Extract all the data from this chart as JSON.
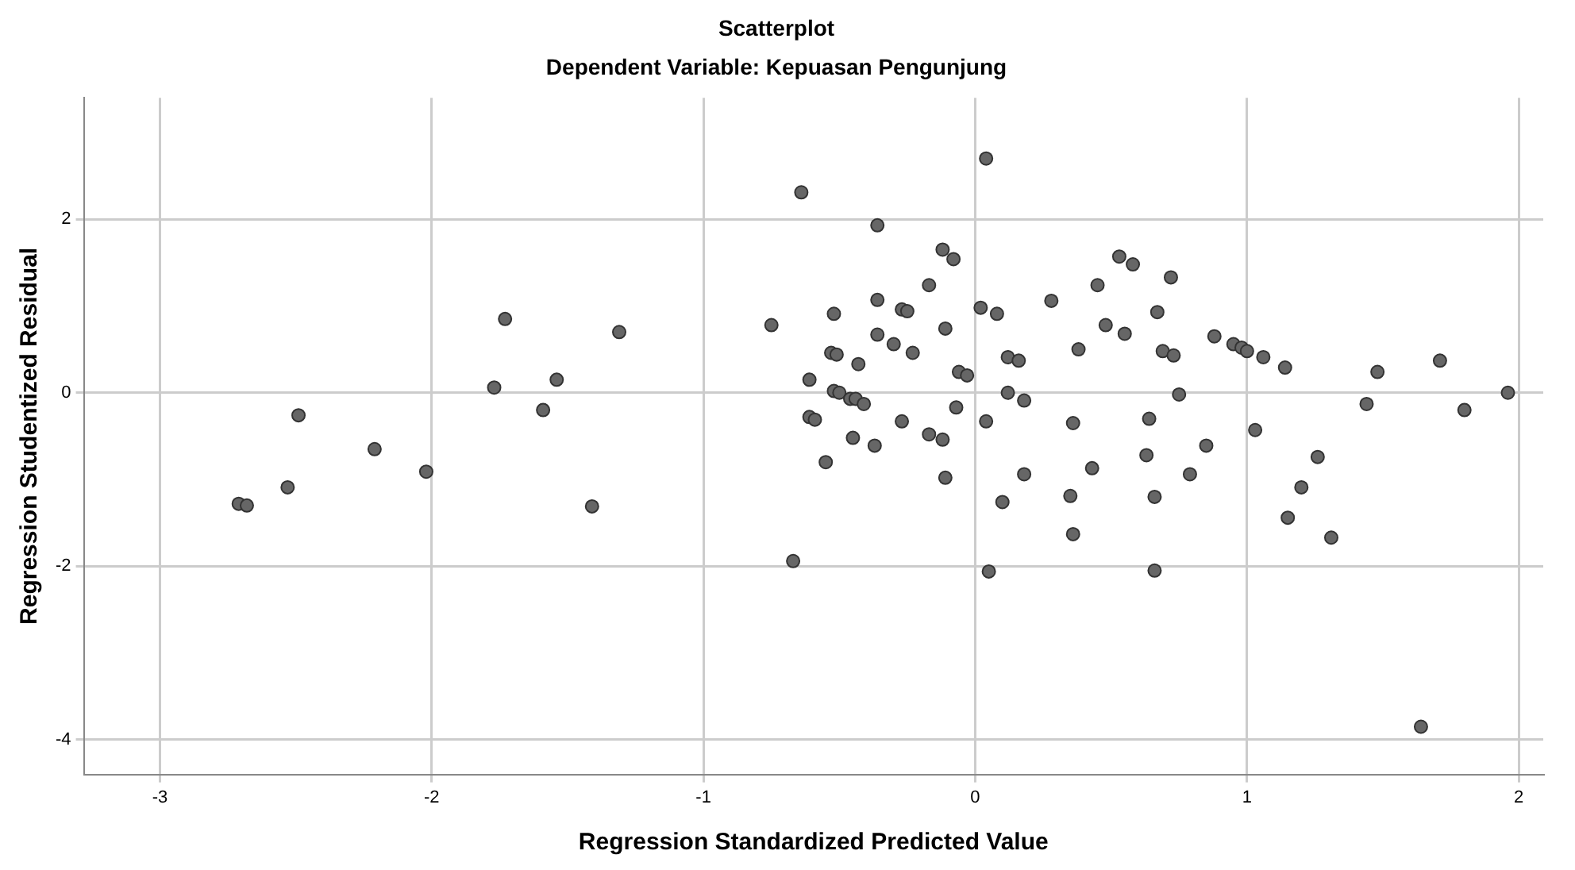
{
  "chart_data": {
    "type": "scatter",
    "title": "Scatterplot",
    "subtitle": "Dependent Variable: Kepuasan Pengunjung",
    "xlabel": "Regression Standardized Predicted Value",
    "ylabel": "Regression Studentized Residual",
    "xlim": [
      -3.28,
      2.09
    ],
    "ylim": [
      -4.4,
      3.4
    ],
    "xticks": [
      -3,
      -2,
      -1,
      0,
      1,
      2
    ],
    "yticks": [
      -4,
      -2,
      0,
      2
    ],
    "grid": true,
    "marker": "circle",
    "series": [
      {
        "color": "#666666",
        "x": [
          -2.71,
          -2.68,
          -2.53,
          -2.49,
          -2.21,
          -2.02,
          -1.77,
          -1.73,
          -1.59,
          -1.54,
          -1.41,
          -1.31,
          0.04,
          -0.64,
          -0.36,
          -0.12,
          -0.08,
          -0.17,
          -0.36,
          -0.27,
          -0.25,
          0.02,
          0.08,
          0.28,
          0.45,
          0.53,
          -0.75,
          -0.52,
          -0.11,
          -0.36,
          -0.3,
          -0.23,
          -0.53,
          -0.51,
          -0.43,
          0.12,
          0.16,
          0.38,
          0.48,
          -0.06,
          -0.03,
          -0.61,
          -0.52,
          -0.5,
          -0.46,
          -0.44,
          -0.41,
          0.12,
          0.18,
          -0.61,
          -0.59,
          -0.27,
          -0.07,
          0.04,
          0.36,
          -0.45,
          -0.37,
          -0.17,
          -0.12,
          -0.55,
          -0.11,
          0.18,
          0.43,
          0.1,
          0.35,
          0.36,
          -0.67,
          0.05,
          0.58,
          0.72,
          0.67,
          0.55,
          0.69,
          0.73,
          0.88,
          0.95,
          0.98,
          1.0,
          1.06,
          1.14,
          0.75,
          0.64,
          0.63,
          0.85,
          0.79,
          0.66,
          0.66,
          1.03,
          1.26,
          1.2,
          1.15,
          1.31,
          1.48,
          1.44,
          1.71,
          1.8,
          1.96,
          1.64
        ],
        "values": [
          -1.28,
          -1.3,
          -1.09,
          -0.26,
          -0.65,
          -0.91,
          0.06,
          0.85,
          -0.2,
          0.15,
          -1.31,
          0.7,
          2.7,
          2.31,
          1.93,
          1.65,
          1.54,
          1.24,
          1.07,
          0.96,
          0.94,
          0.98,
          0.91,
          1.06,
          1.24,
          1.57,
          0.78,
          0.91,
          0.74,
          0.67,
          0.56,
          0.46,
          0.46,
          0.44,
          0.33,
          0.41,
          0.37,
          0.5,
          0.78,
          0.24,
          0.2,
          0.15,
          0.02,
          0.0,
          -0.07,
          -0.07,
          -0.13,
          0.0,
          -0.09,
          -0.28,
          -0.31,
          -0.33,
          -0.17,
          -0.33,
          -0.35,
          -0.52,
          -0.61,
          -0.48,
          -0.54,
          -0.8,
          -0.98,
          -0.94,
          -0.87,
          -1.26,
          -1.19,
          -1.63,
          -1.94,
          -2.06,
          1.48,
          1.33,
          0.93,
          0.68,
          0.48,
          0.43,
          0.65,
          0.56,
          0.52,
          0.48,
          0.41,
          0.29,
          -0.02,
          -0.3,
          -0.72,
          -0.61,
          -0.94,
          -1.2,
          -2.05,
          -0.43,
          -0.74,
          -1.09,
          -1.44,
          -1.67,
          0.24,
          -0.13,
          0.37,
          -0.2,
          0.0,
          -3.85
        ]
      }
    ]
  }
}
